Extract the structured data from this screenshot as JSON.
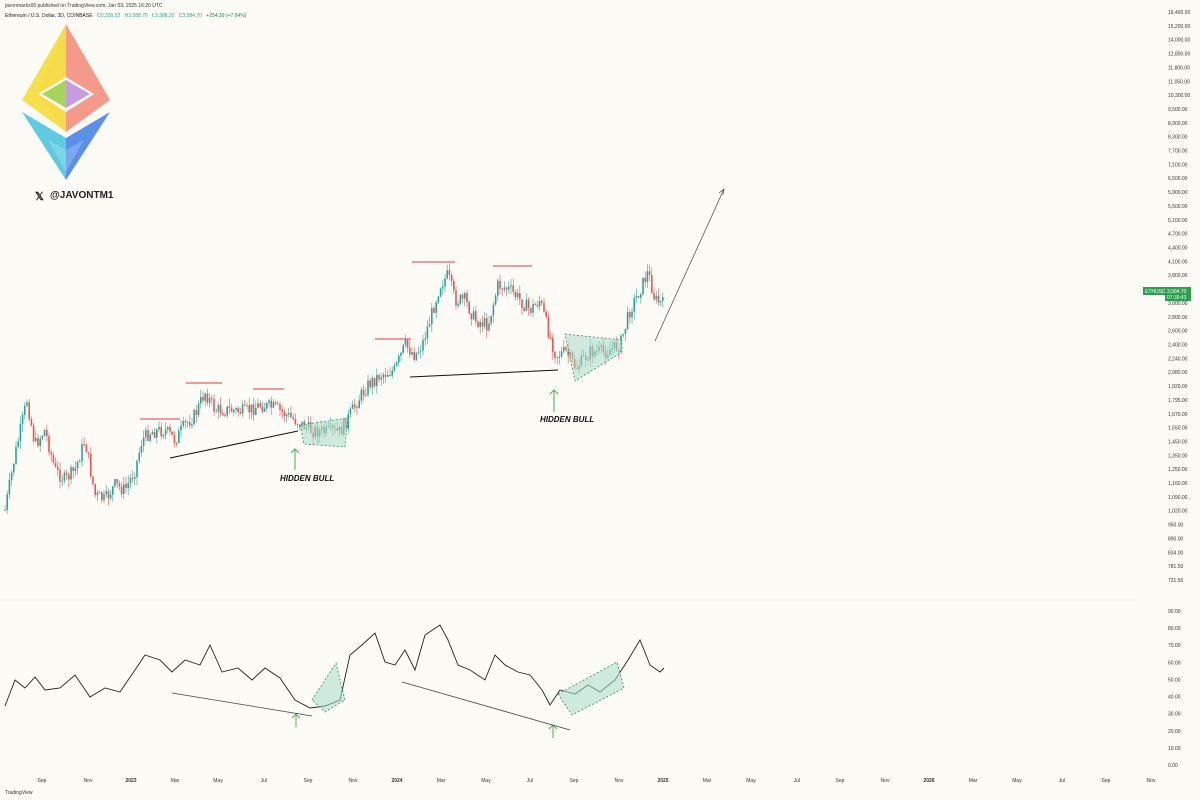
{
  "header": {
    "published": "javonmarks00 published on TradingView.com, Jan 03, 2025 16:20 UTC"
  },
  "symbol": {
    "name": "Ethereum / U.S. Dollar, 3D, COINBASE",
    "open_label": "O",
    "open": "3,330.52",
    "high_label": "H",
    "high": "3,588.76",
    "low_label": "L",
    "low": "3,308.20",
    "close_label": "C",
    "close": "3,584.70",
    "change": "+254.39 (+7.64%)"
  },
  "brand": {
    "handle": "@JAVONTM1",
    "x_icon": "𝕏"
  },
  "footer": {
    "brand": "TradingView"
  },
  "price_badge": {
    "ticker": "ETHUSD",
    "price": "3,584.70",
    "countdown": "07:39:43"
  },
  "annotations": {
    "hidden_bull_1": "HIDDEN BULL",
    "hidden_bull_2": "HIDDEN BULL"
  },
  "colors": {
    "bull": "#26a69a",
    "bear": "#ef5350",
    "resistance": "#e8606a",
    "arrow_green": "#4caf50",
    "pattern_fill": "#a8dcc9"
  },
  "chart_data": [
    {
      "type": "candlestick",
      "title": "Ethereum / U.S. Dollar, 3D, COINBASE",
      "scale": "log",
      "y_ticks": [
        "16,400.00",
        "15,200.00",
        "14,000.00",
        "12,800.00",
        "11,800.00",
        "11,050.00",
        "10,300.00",
        "9,500.00",
        "8,900.00",
        "8,300.00",
        "7,700.00",
        "7,100.00",
        "6,500.00",
        "5,900.00",
        "5,500.00",
        "5,100.00",
        "4,700.00",
        "4,400.00",
        "4,100.00",
        "3,800.00",
        "3,200.00",
        "3,000.00",
        "2,800.00",
        "2,600.00",
        "2,400.00",
        "2,240.00",
        "2,080.00",
        "1,920.00",
        "1,795.00",
        "1,670.00",
        "1,550.00",
        "1,450.00",
        "1,350.00",
        "1,250.00",
        "1,160.00",
        "1,090.00",
        "1,020.00",
        "950.00",
        "890.00",
        "834.00",
        "781.50",
        "731.50"
      ],
      "x_ticks": [
        "Sep",
        "Nov",
        "2023",
        "Mar",
        "May",
        "Jul",
        "Sep",
        "Nov",
        "2024",
        "Mar",
        "May",
        "Jul",
        "Sep",
        "Nov",
        "2025",
        "Mar",
        "May",
        "Jul",
        "Sep",
        "Nov",
        "2026",
        "Mar",
        "May",
        "Jul",
        "Sep",
        "Nov"
      ],
      "bold_x_ticks": [
        "2023",
        "2024",
        "2025",
        "2026"
      ],
      "last_price": 3584.7
    },
    {
      "type": "line",
      "title": "",
      "y_ticks": [
        "90.00",
        "80.00",
        "70.00",
        "60.00",
        "50.00",
        "40.00",
        "30.00",
        "20.00",
        "10.00",
        "0.00"
      ],
      "ylim": [
        0,
        90
      ]
    }
  ]
}
